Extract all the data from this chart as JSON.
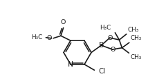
{
  "bg_color": "#ffffff",
  "line_color": "#1a1a1a",
  "line_width": 1.2,
  "font_size": 6.8,
  "fig_width": 2.4,
  "fig_height": 1.21,
  "dpi": 100,
  "xlim": [
    0,
    12
  ],
  "ylim": [
    0,
    6
  ]
}
